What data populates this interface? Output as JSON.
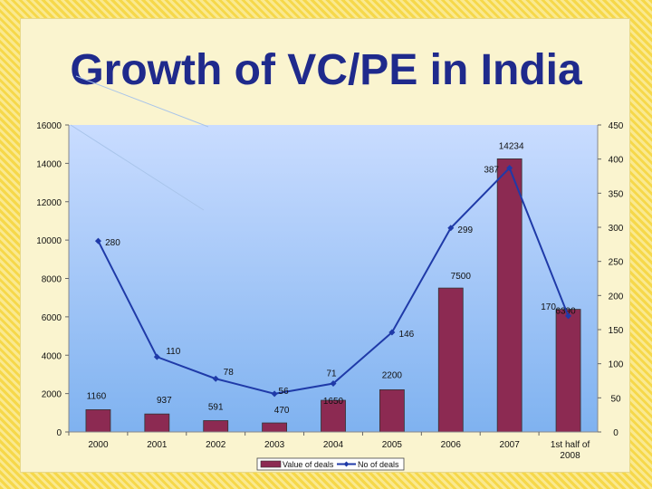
{
  "title": "Growth of VC/PE in India",
  "colors": {
    "bar_fill": "#8c2a52",
    "line": "#1f3aa8",
    "plot_bg_top": "#c9dcff",
    "plot_bg_bottom": "#7fb2f0",
    "title": "#1f2a8c"
  },
  "chart_data": {
    "type": "bar",
    "categories": [
      "2000",
      "2001",
      "2002",
      "2003",
      "2004",
      "2005",
      "2006",
      "2007",
      "1st half of 2008"
    ],
    "series": [
      {
        "name": "Value of deals",
        "type": "bar",
        "axis": "left",
        "values": [
          1160,
          937,
          591,
          470,
          1650,
          2200,
          7500,
          14234,
          6390
        ]
      },
      {
        "name": "No of deals",
        "type": "line",
        "axis": "right",
        "values": [
          280,
          110,
          78,
          56,
          71,
          146,
          299,
          387,
          170
        ]
      }
    ],
    "y_left": {
      "min": 0,
      "max": 16000,
      "ticks": [
        "0",
        "2000",
        "4000",
        "6000",
        "8000",
        "10000",
        "12000",
        "14000",
        "16000"
      ]
    },
    "y_right": {
      "min": 0,
      "max": 450,
      "ticks": [
        "0",
        "50",
        "100",
        "150",
        "200",
        "250",
        "300",
        "350",
        "400",
        "450"
      ]
    },
    "bar_labels": [
      "1160",
      "937",
      "591",
      "470",
      "1650",
      "2200",
      "7500",
      "14234",
      "6390"
    ],
    "line_labels": [
      "280",
      "110",
      "78",
      "56",
      "71",
      "146",
      "299",
      "387",
      "170"
    ],
    "legend": [
      "Value of deals",
      "No of deals"
    ],
    "legend_position": "bottom",
    "grid": false
  }
}
